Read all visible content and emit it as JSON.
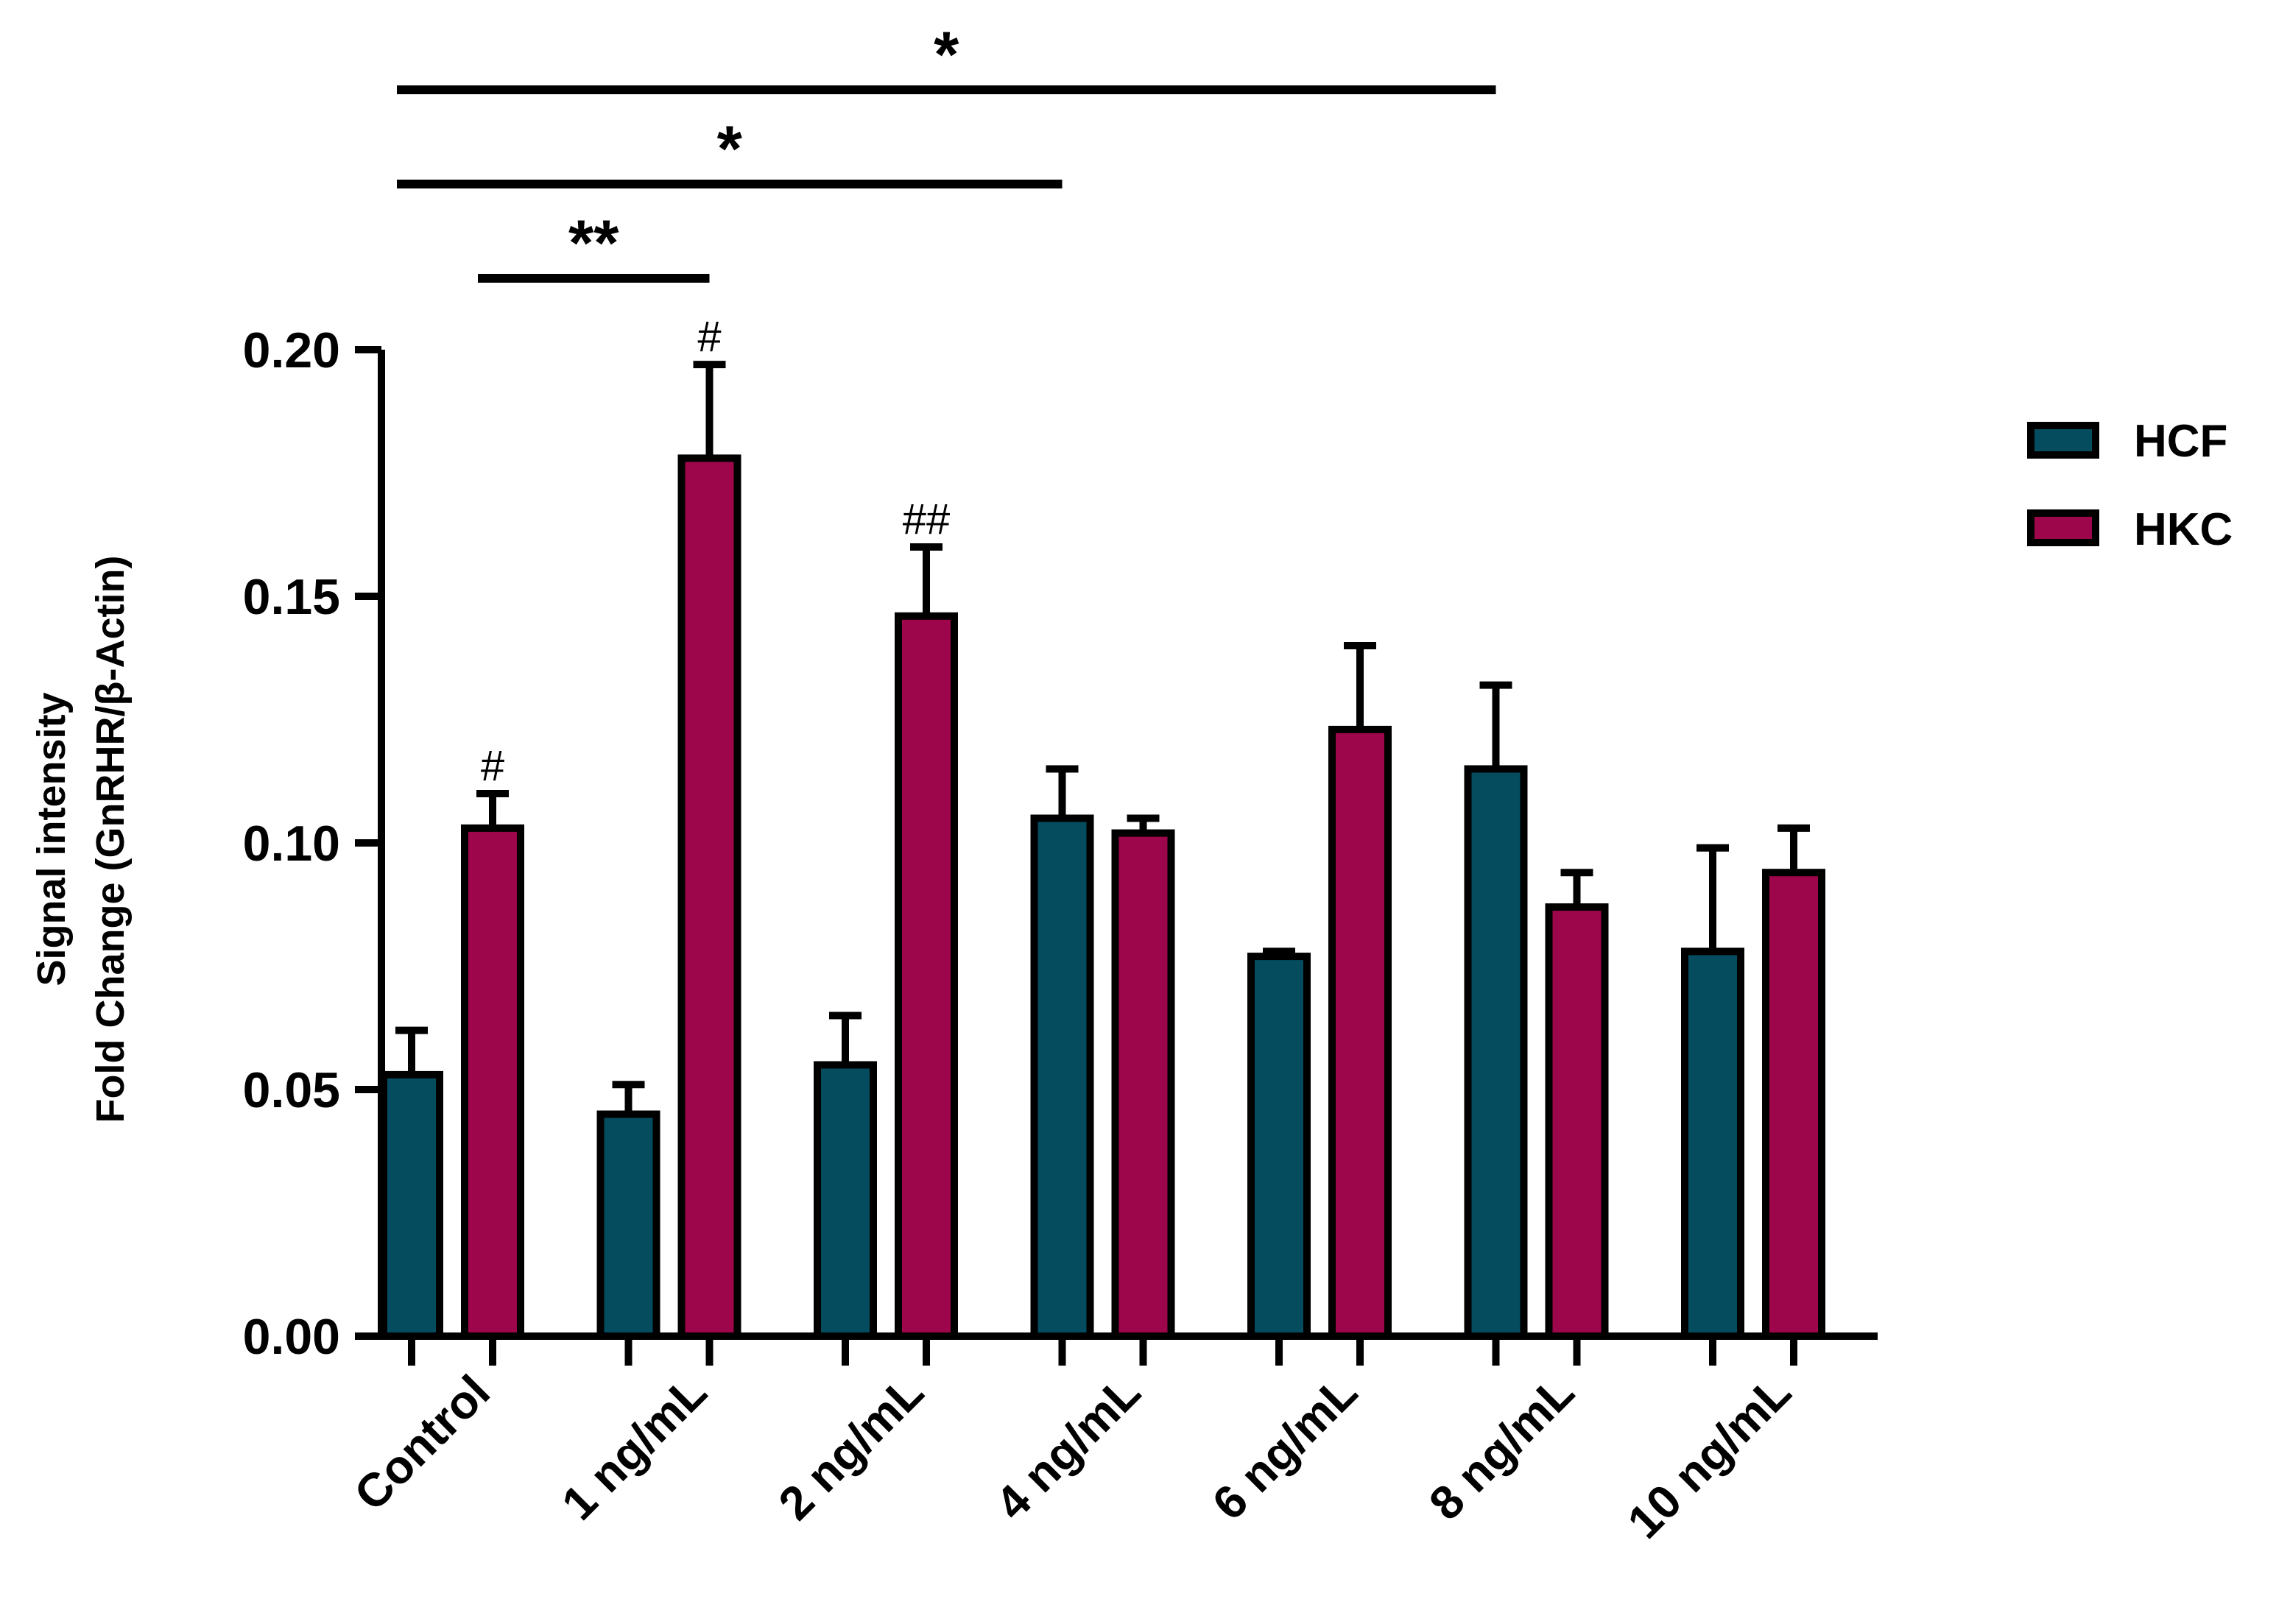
{
  "chart_data": {
    "type": "bar",
    "title": "",
    "xlabel": "",
    "ylabel_line1": "Signal intensity",
    "ylabel_line2": "Fold Change (GnRHR/β-Actin)",
    "ylim": [
      0,
      0.2
    ],
    "yticks": [
      "0.00",
      "0.05",
      "0.10",
      "0.15",
      "0.20"
    ],
    "yticks_values": [
      0,
      0.05,
      0.1,
      0.15,
      0.2
    ],
    "categories": [
      "Control",
      "1 ng/mL",
      "2 ng/mL",
      "4 ng/mL",
      "6 ng/mL",
      "8 ng/mL",
      "10 ng/mL"
    ],
    "series": [
      {
        "name": "HCF",
        "color": "#054c5e",
        "values": [
          0.053,
          0.045,
          0.055,
          0.105,
          0.077,
          0.115,
          0.078
        ],
        "errors": [
          0.009,
          0.006,
          0.01,
          0.01,
          0.001,
          0.017,
          0.021
        ],
        "annotations": [
          "",
          "",
          "",
          "",
          "",
          "",
          ""
        ]
      },
      {
        "name": "HKC",
        "color": "#9e064b",
        "values": [
          0.103,
          0.178,
          0.146,
          0.102,
          0.123,
          0.087,
          0.094
        ],
        "errors": [
          0.007,
          0.019,
          0.014,
          0.003,
          0.017,
          0.007,
          0.009
        ],
        "annotations": [
          "#",
          "#",
          "##",
          "",
          "",
          "",
          ""
        ]
      }
    ],
    "significance": [
      {
        "from_category": 0,
        "from_series": 0,
        "to_category": 5,
        "to_series": 0,
        "label": "*"
      },
      {
        "from_category": 0,
        "from_series": 0,
        "to_category": 3,
        "to_series": 0,
        "label": "*"
      },
      {
        "from_category": 0,
        "from_series": 1,
        "to_category": 1,
        "to_series": 1,
        "label": "**"
      }
    ],
    "legend": {
      "position": "right",
      "entries": [
        "HCF",
        "HKC"
      ]
    }
  }
}
